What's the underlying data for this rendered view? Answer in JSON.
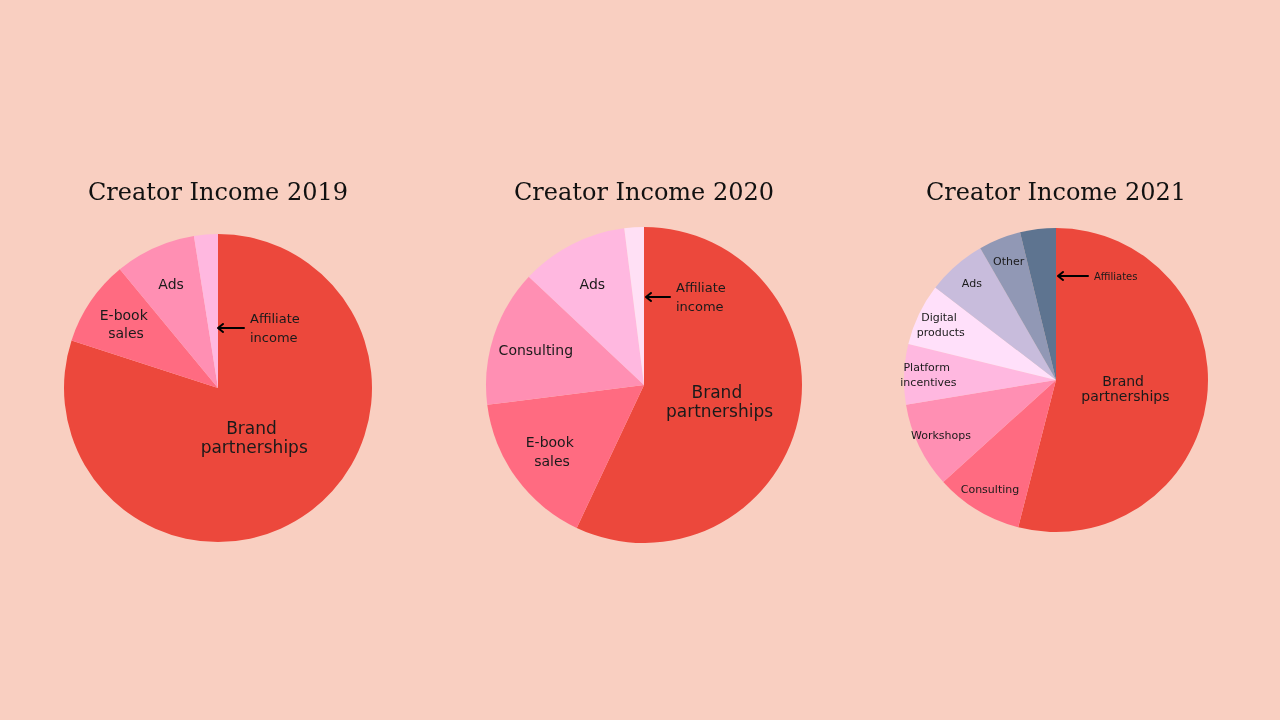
{
  "chart_data": [
    {
      "type": "pie",
      "title": "Creator Income 2019",
      "categories": [
        "Brand partnerships",
        "E-book sales",
        "Ads",
        "Affiliate income"
      ],
      "values": [
        80,
        9,
        8.5,
        2.5
      ],
      "colors": [
        "#ec483c",
        "#ff6b81",
        "#ff8fb3",
        "#ffb8e0"
      ]
    },
    {
      "type": "pie",
      "title": "Creator Income 2020",
      "categories": [
        "Brand partnerships",
        "E-book sales",
        "Consulting",
        "Ads",
        "Affiliate income"
      ],
      "values": [
        57,
        16,
        14,
        11,
        2
      ],
      "colors": [
        "#ec483c",
        "#ff6b81",
        "#ff8fb3",
        "#ffb8e0",
        "#ffe0f5"
      ]
    },
    {
      "type": "pie",
      "title": "Creator Income 2021",
      "categories": [
        "Brand partnerships",
        "Consulting",
        "Workshops",
        "Platform incentives",
        "Digital products",
        "Ads",
        "Other",
        "Affiliates"
      ],
      "values": [
        54,
        9.3,
        9.1,
        6.4,
        6.6,
        6.3,
        4.5,
        3.8
      ],
      "colors": [
        "#ec483c",
        "#ff6b81",
        "#ff8fb3",
        "#ffb8e0",
        "#ffe0fa",
        "#c8bcdc",
        "#9198b5",
        "#5e7490"
      ]
    }
  ]
}
